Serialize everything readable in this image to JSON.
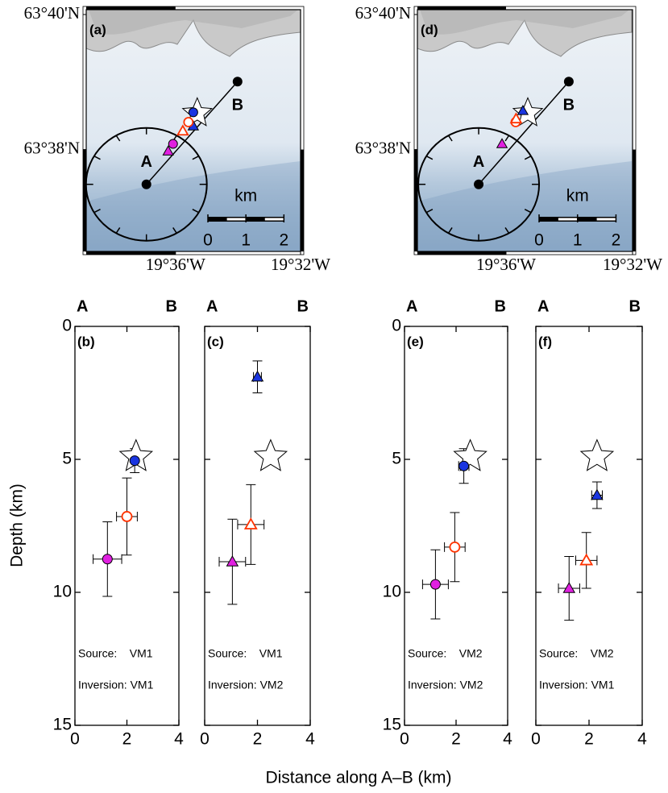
{
  "figure": {
    "xlabel": "Distance along A–B (km)",
    "ylabel": "Depth (km)"
  },
  "chart_data": [
    {
      "type": "map",
      "panel": "(a)",
      "xlim": [
        -19.6476,
        -19.5333
      ],
      "ylim": [
        63.6081,
        63.6679
      ],
      "xticks": [
        {
          "value": -19.6,
          "label": "19°36'W"
        },
        {
          "value": -19.5333,
          "label": "19°32'W"
        }
      ],
      "yticks": [
        {
          "value": 63.6667,
          "label": "63°40'N"
        },
        {
          "value": 63.6333,
          "label": "63°38'N"
        }
      ],
      "scale_bar": {
        "label": "km",
        "ticks": [
          0,
          1,
          2
        ]
      },
      "profile": {
        "x": [
          -19.6155,
          -19.5669
        ],
        "y": [
          63.6247,
          63.6501
        ],
        "labels": [
          "A",
          "B"
        ]
      },
      "series": [
        {
          "marker": "star",
          "color": "#ffffff",
          "x": [
            -19.5884
          ],
          "y": [
            63.6423
          ]
        },
        {
          "marker": "circle",
          "color": "#1a35e0",
          "filled": true,
          "x": [
            -19.5905
          ],
          "y": [
            63.6425
          ]
        },
        {
          "marker": "triangle",
          "color": "#1a35e0",
          "filled": true,
          "x": [
            -19.5905
          ],
          "y": [
            63.6391
          ]
        },
        {
          "marker": "circle",
          "color": "#ff3300",
          "filled": false,
          "x": [
            -19.5931
          ],
          "y": [
            63.6401
          ]
        },
        {
          "marker": "triangle",
          "color": "#ff3300",
          "filled": false,
          "x": [
            -19.5961
          ],
          "y": [
            63.6379
          ]
        },
        {
          "marker": "circle",
          "color": "#e020e0",
          "filled": true,
          "x": [
            -19.6013
          ],
          "y": [
            63.6347
          ]
        },
        {
          "marker": "triangle",
          "color": "#e020e0",
          "filled": true,
          "x": [
            -19.6039
          ],
          "y": [
            63.6329
          ]
        }
      ]
    },
    {
      "type": "map",
      "panel": "(d)",
      "xlim": [
        -19.6467,
        -19.5333
      ],
      "ylim": [
        63.6081,
        63.6679
      ],
      "xticks": [
        {
          "value": -19.6,
          "label": "19°36'W"
        },
        {
          "value": -19.5333,
          "label": "19°32'W"
        }
      ],
      "yticks": [
        {
          "value": 63.6667,
          "label": "63°40'N"
        },
        {
          "value": 63.6333,
          "label": "63°38'N"
        }
      ],
      "scale_bar": {
        "label": "km",
        "ticks": [
          0,
          1,
          2
        ]
      },
      "profile": {
        "x": [
          -19.6144,
          -19.5669
        ],
        "y": [
          63.6247,
          63.6501
        ],
        "labels": [
          "A",
          "B"
        ]
      },
      "series": [
        {
          "marker": "star",
          "color": "#ffffff",
          "x": [
            -19.5885
          ],
          "y": [
            63.6423
          ]
        },
        {
          "marker": "circle",
          "color": "#ff3300",
          "filled": false,
          "x": [
            -19.5949
          ],
          "y": [
            63.6401
          ]
        },
        {
          "marker": "triangle",
          "color": "#ff3300",
          "filled": false,
          "x": [
            -19.5947
          ],
          "y": [
            63.6409
          ]
        },
        {
          "marker": "triangle",
          "color": "#1a35e0",
          "filled": true,
          "x": [
            -19.5911
          ],
          "y": [
            63.6429
          ]
        },
        {
          "marker": "triangle",
          "color": "#e020e0",
          "filled": true,
          "x": [
            -19.6021
          ],
          "y": [
            63.6347
          ]
        }
      ]
    },
    {
      "type": "section",
      "panel": "(b)",
      "ends": [
        "A",
        "B"
      ],
      "xlim": [
        0,
        4
      ],
      "ylim": [
        15,
        0
      ],
      "xticks": [
        0,
        2,
        4
      ],
      "yticks": [
        0,
        5,
        10,
        15
      ],
      "ytick_labels": true,
      "annotations": [
        "Source:    VM1",
        "Inversion: VM1"
      ],
      "series": [
        {
          "marker": "star",
          "color": "#ffffff",
          "x": [
            2.35
          ],
          "y": [
            4.9
          ]
        },
        {
          "marker": "circle",
          "color": "#1a35e0",
          "filled": true,
          "x": [
            2.3
          ],
          "y": [
            5.05
          ],
          "xerr": [
            0.15
          ],
          "yerr": [
            0.45
          ]
        },
        {
          "marker": "circle",
          "color": "#ff3300",
          "filled": false,
          "x": [
            2.0
          ],
          "y": [
            7.15
          ],
          "xerr": [
            0.4
          ],
          "yerr": [
            1.45
          ]
        },
        {
          "marker": "circle",
          "color": "#e020e0",
          "filled": true,
          "x": [
            1.25
          ],
          "y": [
            8.75
          ],
          "xerr": [
            0.55
          ],
          "yerr": [
            1.4
          ]
        }
      ]
    },
    {
      "type": "section",
      "panel": "(c)",
      "ends": [
        "A",
        "B"
      ],
      "xlim": [
        0,
        4
      ],
      "ylim": [
        15,
        0
      ],
      "xticks": [
        0,
        2,
        4
      ],
      "yticks": [
        0,
        5,
        10,
        15
      ],
      "ytick_labels": false,
      "annotations": [
        "Source:    VM1",
        "Inversion: VM2"
      ],
      "series": [
        {
          "marker": "star",
          "color": "#ffffff",
          "x": [
            2.5
          ],
          "y": [
            4.9
          ]
        },
        {
          "marker": "triangle",
          "color": "#1a35e0",
          "filled": true,
          "x": [
            2.0
          ],
          "y": [
            1.9
          ],
          "xerr": [
            0.15
          ],
          "yerr": [
            0.6
          ]
        },
        {
          "marker": "triangle",
          "color": "#ff3300",
          "filled": false,
          "x": [
            1.75
          ],
          "y": [
            7.45
          ],
          "xerr": [
            0.5
          ],
          "yerr": [
            1.5
          ]
        },
        {
          "marker": "triangle",
          "color": "#e020e0",
          "filled": true,
          "x": [
            1.05
          ],
          "y": [
            8.85
          ],
          "xerr": [
            0.5
          ],
          "yerr": [
            1.6
          ]
        }
      ]
    },
    {
      "type": "section",
      "panel": "(e)",
      "ends": [
        "A",
        "B"
      ],
      "xlim": [
        0,
        4
      ],
      "ylim": [
        15,
        0
      ],
      "xticks": [
        0,
        2,
        4
      ],
      "yticks": [
        0,
        5,
        10,
        15
      ],
      "ytick_labels": true,
      "annotations": [
        "Source:    VM2",
        "Inversion: VM2"
      ],
      "series": [
        {
          "marker": "star",
          "color": "#ffffff",
          "x": [
            2.55
          ],
          "y": [
            4.9
          ]
        },
        {
          "marker": "circle",
          "color": "#1a35e0",
          "filled": true,
          "x": [
            2.3
          ],
          "y": [
            5.25
          ],
          "xerr": [
            0.2
          ],
          "yerr": [
            0.65
          ]
        },
        {
          "marker": "circle",
          "color": "#ff3300",
          "filled": false,
          "x": [
            1.95
          ],
          "y": [
            8.3
          ],
          "xerr": [
            0.4
          ],
          "yerr": [
            1.3
          ]
        },
        {
          "marker": "circle",
          "color": "#e020e0",
          "filled": true,
          "x": [
            1.2
          ],
          "y": [
            9.7
          ],
          "xerr": [
            0.5
          ],
          "yerr": [
            1.3
          ]
        }
      ]
    },
    {
      "type": "section",
      "panel": "(f)",
      "ends": [
        "A",
        "B"
      ],
      "xlim": [
        0,
        4
      ],
      "ylim": [
        15,
        0
      ],
      "xticks": [
        0,
        2,
        4
      ],
      "yticks": [
        0,
        5,
        10,
        15
      ],
      "ytick_labels": false,
      "annotations": [
        "Source:    VM2",
        "Inversion: VM1"
      ],
      "series": [
        {
          "marker": "star",
          "color": "#ffffff",
          "x": [
            2.3
          ],
          "y": [
            4.9
          ]
        },
        {
          "marker": "triangle",
          "color": "#1a35e0",
          "filled": true,
          "x": [
            2.3
          ],
          "y": [
            6.35
          ],
          "xerr": [
            0.2
          ],
          "yerr": [
            0.5
          ]
        },
        {
          "marker": "triangle",
          "color": "#ff3300",
          "filled": false,
          "x": [
            1.9
          ],
          "y": [
            8.8
          ],
          "xerr": [
            0.4
          ],
          "yerr": [
            1.05
          ]
        },
        {
          "marker": "triangle",
          "color": "#e020e0",
          "filled": true,
          "x": [
            1.25
          ],
          "y": [
            9.85
          ],
          "xerr": [
            0.4
          ],
          "yerr": [
            1.2
          ]
        }
      ]
    }
  ]
}
